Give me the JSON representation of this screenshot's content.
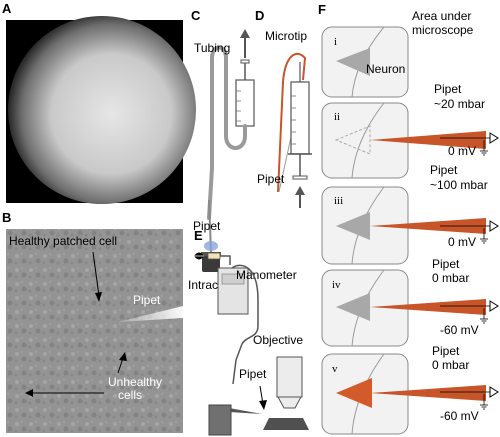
{
  "panels": {
    "a": {
      "letter": "A"
    },
    "b": {
      "letter": "B",
      "healthy_cell": "Healthy patched cell",
      "pipet": "Pipet",
      "unhealthy_1": "Unhealthy",
      "unhealthy_2": "cells"
    },
    "c": {
      "letter": "C",
      "tubing": "Tubing",
      "pipet": "Pipet",
      "intracel": "Intracel."
    },
    "d": {
      "letter": "D",
      "microtip": "Microtip",
      "pipet": "Pipet"
    },
    "e": {
      "letter": "E",
      "manometer": "Manometer",
      "objective": "Objective",
      "pipet": "Pipet"
    },
    "f": {
      "letter": "F",
      "header_1": "Area under",
      "header_2": "microscope",
      "neuron": "Neuron",
      "steps": [
        {
          "roman": "i"
        },
        {
          "roman": "ii",
          "label_1": "Pipet",
          "label_2": "~20 mbar",
          "voltage": "0 mV"
        },
        {
          "roman": "iii",
          "label_1": "Pipet",
          "label_2": "~100 mbar",
          "voltage": "0 mV"
        },
        {
          "roman": "iv",
          "label_1": "Pipet",
          "label_2": "0 mbar",
          "voltage": "-60 mV"
        },
        {
          "roman": "v",
          "label_1": "Pipet",
          "label_2": "0 mbar",
          "voltage": "-60 mV"
        }
      ]
    }
  },
  "colors": {
    "pipet_orange": "#c8552a",
    "neuron_gray": "#a8a8a8",
    "neuron_active": "#d25a2b",
    "panel_bg": "#f2f2f2",
    "intracel_blue": "#8aa4d8"
  }
}
